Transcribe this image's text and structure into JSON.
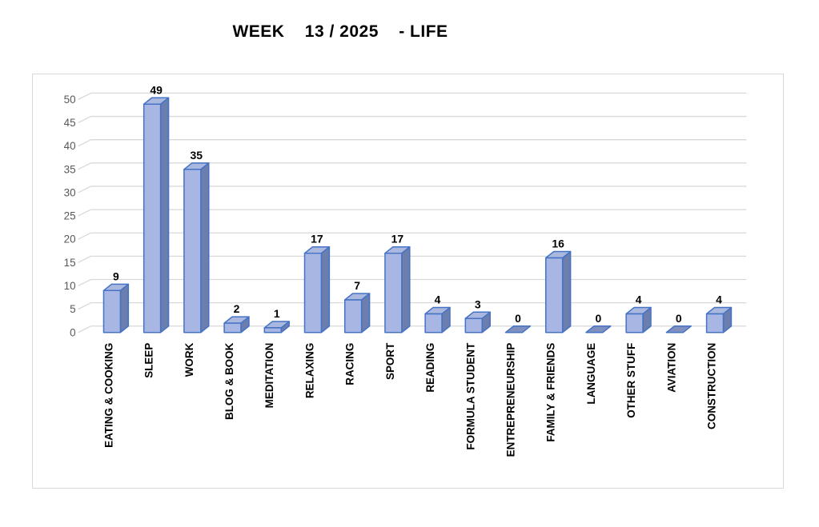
{
  "title": "WEEK    13 / 2025    - LIFE",
  "chart_data": {
    "type": "bar",
    "style": "3d-column",
    "title": "WEEK    13 / 2025    - LIFE",
    "categories": [
      "EATING & COOKING",
      "SLEEP",
      "WORK",
      "BLOG & BOOK",
      "MEDITATION",
      "RELAXING",
      "RACING",
      "SPORT",
      "READING",
      "FORMULA STUDENT",
      "ENTREPRENEURSHIP",
      "FAMILY & FRIENDS",
      "LANGUAGE",
      "OTHER STUFF",
      "AVIATION",
      "CONSTRUCTION"
    ],
    "values": [
      9,
      49,
      35,
      2,
      1,
      17,
      7,
      17,
      4,
      3,
      0,
      16,
      0,
      4,
      0,
      4
    ],
    "data_labels": [
      "9",
      "49",
      "35",
      "2",
      "1",
      "17",
      "7",
      "17",
      "4",
      "3",
      "0",
      "16",
      "0",
      "4",
      "0",
      "4"
    ],
    "xlabel": "",
    "ylabel": "",
    "ylim": [
      0,
      50
    ],
    "ytick_step": 5,
    "ytick_labels": [
      "0",
      "5",
      "10",
      "15",
      "20",
      "25",
      "30",
      "35",
      "40",
      "45",
      "50"
    ],
    "grid": true,
    "legend": false,
    "colors": {
      "bar_front": "#a7b6e3",
      "bar_top": "#aab8e0",
      "bar_side": "#6c7ead",
      "bar_zero_marker": "#8090be",
      "bar_border": "#4472c4",
      "gridline": "#d9d9d9",
      "axis_text": "#595959",
      "category_text": "#000000",
      "value_text": "#000000",
      "chart_border": "#d9d9d9",
      "background": "#ffffff"
    }
  }
}
